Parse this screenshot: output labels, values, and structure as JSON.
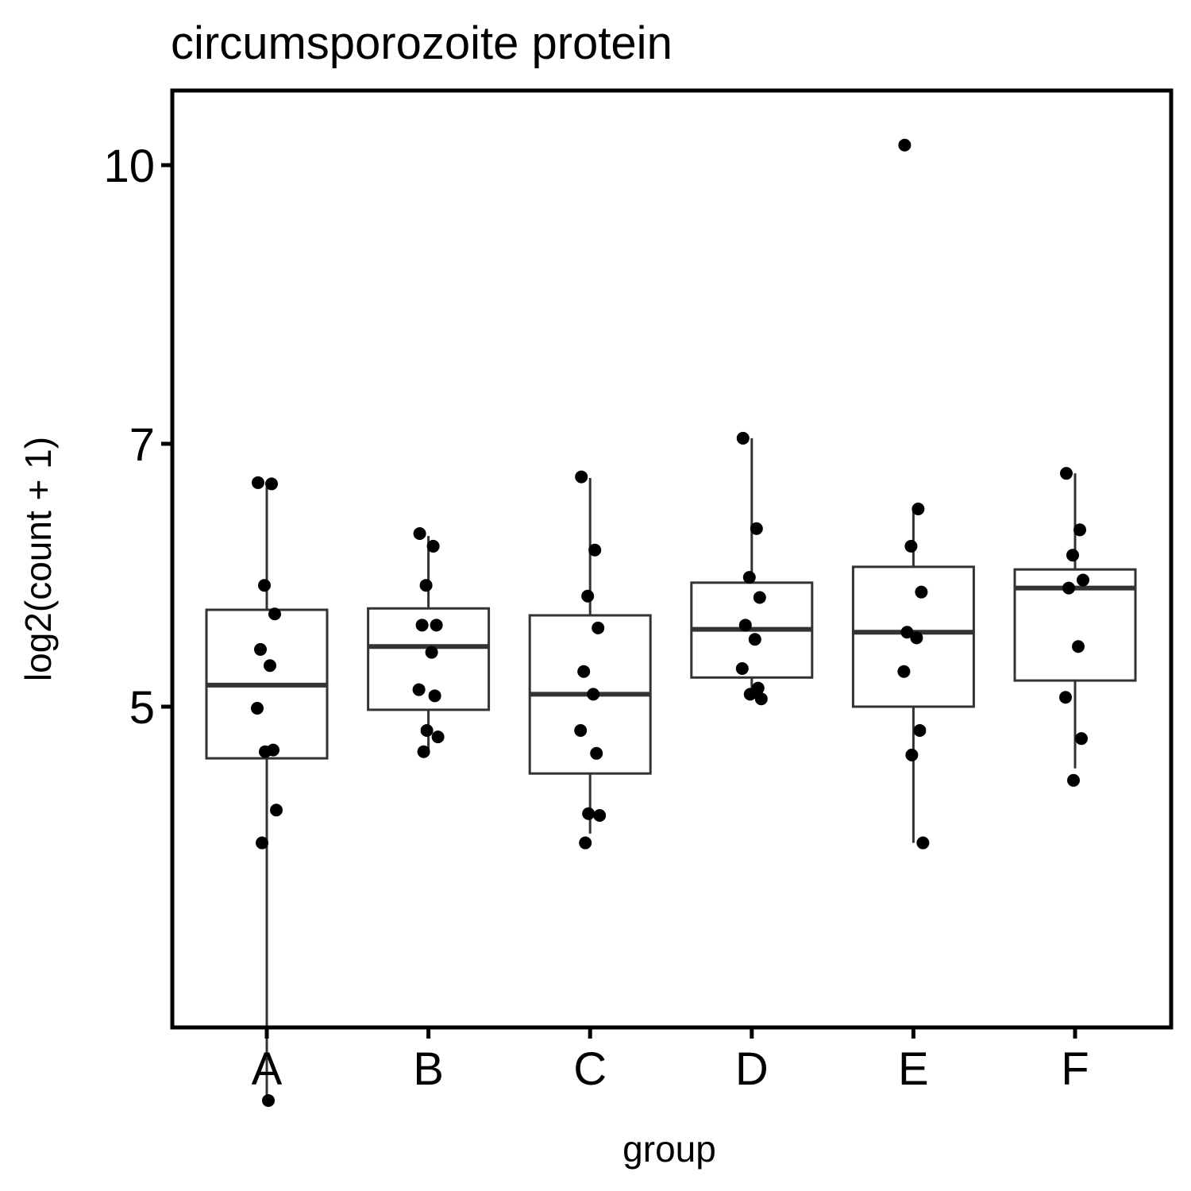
{
  "chart_data": {
    "type": "box",
    "title": "circumsporozoite protein",
    "xlabel": "group",
    "ylabel": "log2(count + 1)",
    "categories": [
      "A",
      "B",
      "C",
      "D",
      "E",
      "F"
    ],
    "yticks": [
      {
        "value": 10,
        "label": "10"
      },
      {
        "value": 7,
        "label": "7"
      },
      {
        "value": 5,
        "label": "5"
      }
    ],
    "ylim": [
      2.75,
      10.5
    ],
    "y_scale": "log2",
    "grid": false,
    "legend": "none",
    "colors": {
      "box": "#333333",
      "point": "#000000",
      "frame": "#000000"
    },
    "boxes": [
      {
        "group": "A",
        "whisker_low": 3.04,
        "q1": 4.68,
        "median": 5.14,
        "q3": 5.66,
        "whisker_high": 6.64
      },
      {
        "group": "B",
        "whisker_low": 4.73,
        "q1": 4.98,
        "median": 5.4,
        "q3": 5.67,
        "whisker_high": 6.22
      },
      {
        "group": "C",
        "whisker_low": 4.25,
        "q1": 4.59,
        "median": 5.08,
        "q3": 5.62,
        "whisker_high": 6.7
      },
      {
        "group": "D",
        "whisker_low": 5.09,
        "q1": 5.19,
        "median": 5.52,
        "q3": 5.86,
        "whisker_high": 7.05
      },
      {
        "group": "E",
        "whisker_low": 4.2,
        "q1": 5.0,
        "median": 5.5,
        "q3": 5.98,
        "whisker_high": 6.44
      },
      {
        "group": "F",
        "whisker_low": 4.62,
        "q1": 5.17,
        "median": 5.82,
        "q3": 5.96,
        "whisker_high": 6.74
      }
    ],
    "points": [
      {
        "group": "A",
        "values": [
          6.66,
          6.65,
          5.84,
          5.63,
          5.38,
          5.27,
          4.99,
          4.73,
          4.72,
          4.38,
          4.2,
          3.02
        ]
      },
      {
        "group": "B",
        "values": [
          6.24,
          6.14,
          5.84,
          5.55,
          5.55,
          5.36,
          5.11,
          5.07,
          4.85,
          4.81,
          4.72
        ]
      },
      {
        "group": "C",
        "values": [
          6.71,
          6.11,
          5.76,
          5.53,
          5.23,
          5.08,
          4.85,
          4.71,
          4.36,
          4.35,
          4.2
        ]
      },
      {
        "group": "D",
        "values": [
          7.05,
          6.28,
          5.9,
          5.75,
          5.55,
          5.45,
          5.25,
          5.12,
          5.08,
          5.05
        ]
      },
      {
        "group": "E",
        "values": [
          10.26,
          6.44,
          6.14,
          5.79,
          5.5,
          5.46,
          5.23,
          4.85,
          4.7,
          4.2
        ]
      },
      {
        "group": "F",
        "values": [
          6.74,
          6.27,
          6.07,
          5.88,
          5.82,
          5.4,
          5.06,
          4.8,
          4.55
        ]
      }
    ]
  }
}
